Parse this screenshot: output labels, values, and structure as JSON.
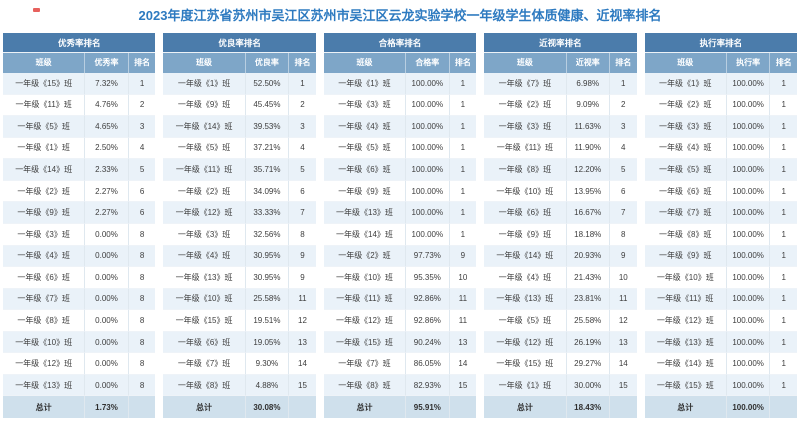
{
  "title": "2023年度江苏省苏州市吴江区苏州市吴江区云龙实验学校一年级学生体质健康、近视率排名",
  "colors": {
    "title_text": "#2d7ac0",
    "table_title_bar": "#4b7cab",
    "column_header": "#7ea6c8",
    "row_alternate": "#eaf2f9",
    "total_row": "#cfe0ec"
  },
  "tables": [
    {
      "title": "优秀率排名",
      "columns": [
        "班级",
        "优秀率",
        "排名"
      ],
      "rows": [
        [
          "一年级《15》班",
          "7.32%",
          "1"
        ],
        [
          "一年级《11》班",
          "4.76%",
          "2"
        ],
        [
          "一年级《5》班",
          "4.65%",
          "3"
        ],
        [
          "一年级《1》班",
          "2.50%",
          "4"
        ],
        [
          "一年级《14》班",
          "2.33%",
          "5"
        ],
        [
          "一年级《2》班",
          "2.27%",
          "6"
        ],
        [
          "一年级《9》班",
          "2.27%",
          "6"
        ],
        [
          "一年级《3》班",
          "0.00%",
          "8"
        ],
        [
          "一年级《4》班",
          "0.00%",
          "8"
        ],
        [
          "一年级《6》班",
          "0.00%",
          "8"
        ],
        [
          "一年级《7》班",
          "0.00%",
          "8"
        ],
        [
          "一年级《8》班",
          "0.00%",
          "8"
        ],
        [
          "一年级《10》班",
          "0.00%",
          "8"
        ],
        [
          "一年级《12》班",
          "0.00%",
          "8"
        ],
        [
          "一年级《13》班",
          "0.00%",
          "8"
        ]
      ],
      "total_label": "总计",
      "total_value": "1.73%"
    },
    {
      "title": "优良率排名",
      "columns": [
        "班级",
        "优良率",
        "排名"
      ],
      "rows": [
        [
          "一年级《1》班",
          "52.50%",
          "1"
        ],
        [
          "一年级《9》班",
          "45.45%",
          "2"
        ],
        [
          "一年级《14》班",
          "39.53%",
          "3"
        ],
        [
          "一年级《5》班",
          "37.21%",
          "4"
        ],
        [
          "一年级《11》班",
          "35.71%",
          "5"
        ],
        [
          "一年级《2》班",
          "34.09%",
          "6"
        ],
        [
          "一年级《12》班",
          "33.33%",
          "7"
        ],
        [
          "一年级《3》班",
          "32.56%",
          "8"
        ],
        [
          "一年级《4》班",
          "30.95%",
          "9"
        ],
        [
          "一年级《13》班",
          "30.95%",
          "9"
        ],
        [
          "一年级《10》班",
          "25.58%",
          "11"
        ],
        [
          "一年级《15》班",
          "19.51%",
          "12"
        ],
        [
          "一年级《6》班",
          "19.05%",
          "13"
        ],
        [
          "一年级《7》班",
          "9.30%",
          "14"
        ],
        [
          "一年级《8》班",
          "4.88%",
          "15"
        ]
      ],
      "total_label": "总计",
      "total_value": "30.08%"
    },
    {
      "title": "合格率排名",
      "columns": [
        "班级",
        "合格率",
        "排名"
      ],
      "rows": [
        [
          "一年级《1》班",
          "100.00%",
          "1"
        ],
        [
          "一年级《3》班",
          "100.00%",
          "1"
        ],
        [
          "一年级《4》班",
          "100.00%",
          "1"
        ],
        [
          "一年级《5》班",
          "100.00%",
          "1"
        ],
        [
          "一年级《6》班",
          "100.00%",
          "1"
        ],
        [
          "一年级《9》班",
          "100.00%",
          "1"
        ],
        [
          "一年级《13》班",
          "100.00%",
          "1"
        ],
        [
          "一年级《14》班",
          "100.00%",
          "1"
        ],
        [
          "一年级《2》班",
          "97.73%",
          "9"
        ],
        [
          "一年级《10》班",
          "95.35%",
          "10"
        ],
        [
          "一年级《11》班",
          "92.86%",
          "11"
        ],
        [
          "一年级《12》班",
          "92.86%",
          "11"
        ],
        [
          "一年级《15》班",
          "90.24%",
          "13"
        ],
        [
          "一年级《7》班",
          "86.05%",
          "14"
        ],
        [
          "一年级《8》班",
          "82.93%",
          "15"
        ]
      ],
      "total_label": "总计",
      "total_value": "95.91%"
    },
    {
      "title": "近视率排名",
      "columns": [
        "班级",
        "近视率",
        "排名"
      ],
      "rows": [
        [
          "一年级《7》班",
          "6.98%",
          "1"
        ],
        [
          "一年级《2》班",
          "9.09%",
          "2"
        ],
        [
          "一年级《3》班",
          "11.63%",
          "3"
        ],
        [
          "一年级《11》班",
          "11.90%",
          "4"
        ],
        [
          "一年级《8》班",
          "12.20%",
          "5"
        ],
        [
          "一年级《10》班",
          "13.95%",
          "6"
        ],
        [
          "一年级《6》班",
          "16.67%",
          "7"
        ],
        [
          "一年级《9》班",
          "18.18%",
          "8"
        ],
        [
          "一年级《14》班",
          "20.93%",
          "9"
        ],
        [
          "一年级《4》班",
          "21.43%",
          "10"
        ],
        [
          "一年级《13》班",
          "23.81%",
          "11"
        ],
        [
          "一年级《5》班",
          "25.58%",
          "12"
        ],
        [
          "一年级《12》班",
          "26.19%",
          "13"
        ],
        [
          "一年级《15》班",
          "29.27%",
          "14"
        ],
        [
          "一年级《1》班",
          "30.00%",
          "15"
        ]
      ],
      "total_label": "总计",
      "total_value": "18.43%"
    },
    {
      "title": "执行率排名",
      "columns": [
        "班级",
        "执行率",
        "排名"
      ],
      "rows": [
        [
          "一年级《1》班",
          "100.00%",
          "1"
        ],
        [
          "一年级《2》班",
          "100.00%",
          "1"
        ],
        [
          "一年级《3》班",
          "100.00%",
          "1"
        ],
        [
          "一年级《4》班",
          "100.00%",
          "1"
        ],
        [
          "一年级《5》班",
          "100.00%",
          "1"
        ],
        [
          "一年级《6》班",
          "100.00%",
          "1"
        ],
        [
          "一年级《7》班",
          "100.00%",
          "1"
        ],
        [
          "一年级《8》班",
          "100.00%",
          "1"
        ],
        [
          "一年级《9》班",
          "100.00%",
          "1"
        ],
        [
          "一年级《10》班",
          "100.00%",
          "1"
        ],
        [
          "一年级《11》班",
          "100.00%",
          "1"
        ],
        [
          "一年级《12》班",
          "100.00%",
          "1"
        ],
        [
          "一年级《13》班",
          "100.00%",
          "1"
        ],
        [
          "一年级《14》班",
          "100.00%",
          "1"
        ],
        [
          "一年级《15》班",
          "100.00%",
          "1"
        ]
      ],
      "total_label": "总计",
      "total_value": "100.00%"
    }
  ]
}
